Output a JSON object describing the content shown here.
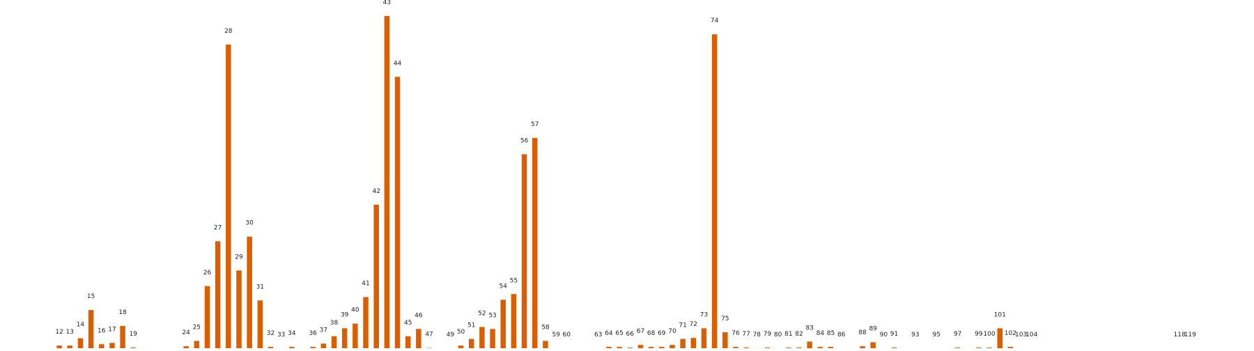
{
  "chart_data": {
    "type": "bar",
    "title": "",
    "xlabel": "",
    "ylabel": "",
    "bar_color": "#d95f02",
    "grid": false,
    "axes_visible": false,
    "ylim": [
      0,
      1.0
    ],
    "x_range": [
      5,
      125
    ],
    "x": [
      12,
      13,
      14,
      15,
      16,
      17,
      18,
      19,
      24,
      25,
      26,
      27,
      28,
      29,
      30,
      31,
      32,
      33,
      34,
      36,
      37,
      38,
      39,
      40,
      41,
      42,
      43,
      44,
      45,
      46,
      47,
      49,
      50,
      51,
      52,
      53,
      54,
      55,
      56,
      57,
      58,
      59,
      60,
      63,
      64,
      65,
      66,
      67,
      68,
      69,
      70,
      71,
      72,
      73,
      74,
      75,
      76,
      77,
      78,
      79,
      80,
      81,
      82,
      83,
      84,
      85,
      86,
      88,
      89,
      90,
      91,
      93,
      95,
      97,
      99,
      100,
      101,
      102,
      103,
      104,
      118,
      119
    ],
    "labels": [
      "12",
      "13",
      "14",
      "15",
      "16",
      "17",
      "18",
      "19",
      "24",
      "25",
      "26",
      "27",
      "28",
      "29",
      "30",
      "31",
      "32",
      "33",
      "34",
      "36",
      "37",
      "38",
      "39",
      "40",
      "41",
      "42",
      "43",
      "44",
      "45",
      "46",
      "47",
      "49",
      "50",
      "51",
      "52",
      "53",
      "54",
      "55",
      "56",
      "57",
      "58",
      "59",
      "60",
      "63",
      "64",
      "65",
      "66",
      "67",
      "68",
      "69",
      "70",
      "71",
      "72",
      "73",
      "74",
      "75",
      "76",
      "77",
      "78",
      "79",
      "80",
      "81",
      "82",
      "83",
      "84",
      "85",
      "86",
      "88",
      "89",
      "90",
      "91",
      "93",
      "95",
      "97",
      "99",
      "100",
      "101",
      "102",
      "103",
      "104",
      "118",
      "119"
    ],
    "values": [
      0.008,
      0.008,
      0.03,
      0.115,
      0.012,
      0.016,
      0.067,
      0.002,
      0.006,
      0.022,
      0.187,
      0.322,
      0.914,
      0.234,
      0.336,
      0.144,
      0.004,
      0,
      0.004,
      0.004,
      0.014,
      0.036,
      0.06,
      0.074,
      0.154,
      0.432,
      1.0,
      0.817,
      0.036,
      0.058,
      0.001,
      0,
      0.008,
      0.028,
      0.064,
      0.058,
      0.146,
      0.163,
      0.584,
      0.633,
      0.022,
      0,
      0,
      0,
      0.004,
      0.004,
      0.002,
      0.01,
      0.004,
      0.004,
      0.01,
      0.028,
      0.031,
      0.06,
      0.945,
      0.048,
      0.004,
      0.002,
      0,
      0.002,
      0,
      0.002,
      0.002,
      0.02,
      0.004,
      0.004,
      0,
      0.006,
      0.018,
      0,
      0.002,
      0,
      0,
      0.002,
      0.002,
      0.002,
      0.06,
      0.004,
      0,
      0,
      0,
      0
    ]
  }
}
